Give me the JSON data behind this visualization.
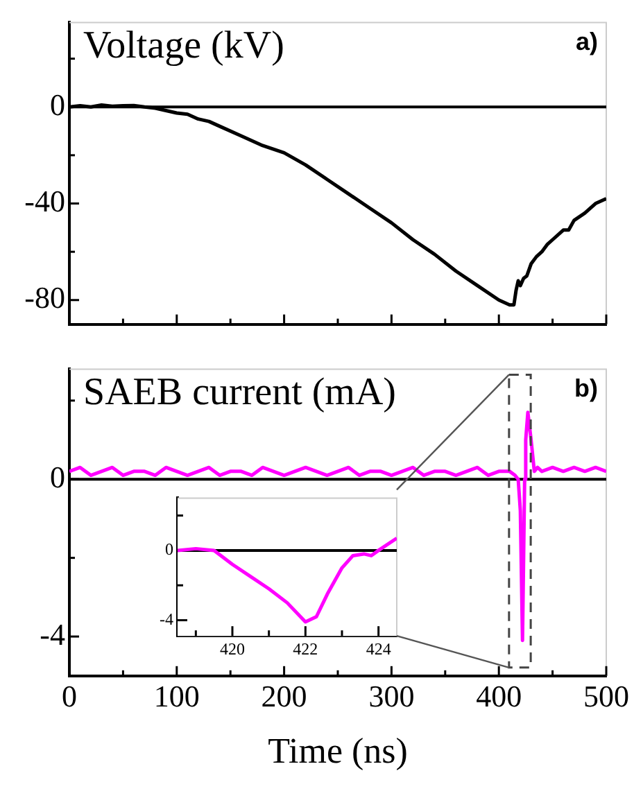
{
  "chart_data": [
    {
      "type": "line",
      "title": "Voltage (kV)",
      "annotations": [
        "a)"
      ],
      "tick_labels": "y",
      "series": [
        {
          "color": "#000000",
          "x": [
            0,
            10,
            20,
            30,
            40,
            50,
            60,
            70,
            80,
            90,
            100,
            110,
            120,
            130,
            140,
            160,
            180,
            200,
            220,
            240,
            260,
            280,
            300,
            320,
            340,
            360,
            380,
            400,
            410,
            414,
            416,
            418,
            420,
            423,
            426,
            430,
            435,
            440,
            445,
            450,
            460,
            465,
            470,
            480,
            490,
            500
          ],
          "values": [
            0,
            0.5,
            0,
            0.8,
            0.3,
            0.5,
            0.6,
            0,
            -0.5,
            -1.5,
            -2.5,
            -3,
            -5,
            -6,
            -8,
            -12,
            -16,
            -19,
            -24,
            -30,
            -36,
            -42,
            -48,
            -55,
            -61,
            -68,
            -74,
            -80,
            -82,
            -82,
            -76,
            -72,
            -74,
            -71,
            -70,
            -65,
            -62,
            -60,
            -57,
            -55,
            -51,
            -51,
            -47,
            -44,
            -40,
            -38
          ]
        }
      ],
      "ref_lines": [
        {
          "axis": "y",
          "value": 0,
          "color": "#000000"
        }
      ],
      "xlim": [
        0,
        500
      ],
      "xticks": [
        0,
        {
          "value": 50,
          "label": null
        },
        100,
        {
          "value": 150,
          "label": null
        },
        200,
        {
          "value": 250,
          "label": null
        },
        300,
        {
          "value": 350,
          "label": null
        },
        400,
        {
          "value": 450,
          "label": null
        },
        500
      ],
      "ylim": [
        -90,
        35
      ],
      "yticks": [
        {
          "value": 20,
          "label": null
        },
        0,
        {
          "value": -20,
          "label": null
        },
        -40,
        {
          "value": -60,
          "label": null
        },
        -80
      ]
    },
    {
      "type": "line",
      "title": "SAEB current (mA)",
      "annotations": [
        "b)"
      ],
      "xlabel": "Time (ns)",
      "series": [
        {
          "color": "#ff00ff",
          "x": [
            0,
            10,
            20,
            30,
            40,
            50,
            60,
            70,
            80,
            90,
            100,
            110,
            120,
            130,
            140,
            150,
            160,
            170,
            180,
            190,
            200,
            210,
            220,
            230,
            240,
            250,
            260,
            270,
            280,
            290,
            300,
            310,
            320,
            330,
            340,
            350,
            360,
            370,
            380,
            390,
            400,
            410,
            415,
            418,
            420,
            422,
            424,
            425,
            427,
            430,
            433,
            436,
            440,
            450,
            460,
            470,
            480,
            490,
            500
          ],
          "values": [
            0.2,
            0.3,
            0.1,
            0.2,
            0.3,
            0.1,
            0.2,
            0.2,
            0.1,
            0.3,
            0.2,
            0.1,
            0.2,
            0.3,
            0.1,
            0.2,
            0.2,
            0.1,
            0.3,
            0.2,
            0.1,
            0.2,
            0.3,
            0.2,
            0.1,
            0.2,
            0.3,
            0.1,
            0.2,
            0.2,
            0.1,
            0.2,
            0.3,
            0.1,
            0.2,
            0.2,
            0.1,
            0.2,
            0.3,
            0.1,
            0.2,
            0.2,
            0.1,
            0,
            -0.8,
            -4.1,
            0,
            1,
            1.7,
            1,
            0.2,
            0.3,
            0.2,
            0.3,
            0.2,
            0.3,
            0.2,
            0.3,
            0.2
          ]
        }
      ],
      "ref_lines": [
        {
          "axis": "y",
          "value": 0,
          "color": "#000000"
        }
      ],
      "xlim": [
        0,
        500
      ],
      "xticks": [
        0,
        {
          "value": 50,
          "label": null
        },
        100,
        {
          "value": 150,
          "label": null
        },
        200,
        {
          "value": 250,
          "label": null
        },
        300,
        {
          "value": 350,
          "label": null
        },
        400,
        {
          "value": 450,
          "label": null
        },
        500
      ],
      "ylim": [
        -5,
        2.8
      ],
      "yticks": [
        {
          "value": 2,
          "label": null
        },
        0,
        {
          "value": -2,
          "label": null
        },
        -4
      ]
    },
    {
      "type": "line",
      "series": [
        {
          "color": "#ff00ff",
          "x": [
            418.5,
            419,
            419.5,
            420,
            420.5,
            421,
            421.5,
            422,
            422.3,
            422.6,
            423,
            423.3,
            423.6,
            423.8,
            424,
            424.5
          ],
          "values": [
            0,
            0.1,
            0,
            -0.8,
            -1.5,
            -2.2,
            -3,
            -4.1,
            -3.8,
            -2.5,
            -1,
            -0.3,
            -0.2,
            -0.3,
            0,
            0.7
          ]
        }
      ],
      "ref_lines": [
        {
          "axis": "y",
          "value": 0,
          "color": "#000000"
        }
      ],
      "xlim": [
        418.5,
        424.5
      ],
      "xticks": [
        {
          "value": 419,
          "label": null
        },
        420,
        {
          "value": 421,
          "label": null
        },
        422,
        {
          "value": 423,
          "label": null
        },
        424
      ],
      "ylim": [
        -4.9,
        3
      ],
      "yticks": [
        {
          "value": 2,
          "label": null
        },
        0,
        {
          "value": -2,
          "label": null
        },
        -4
      ]
    }
  ]
}
